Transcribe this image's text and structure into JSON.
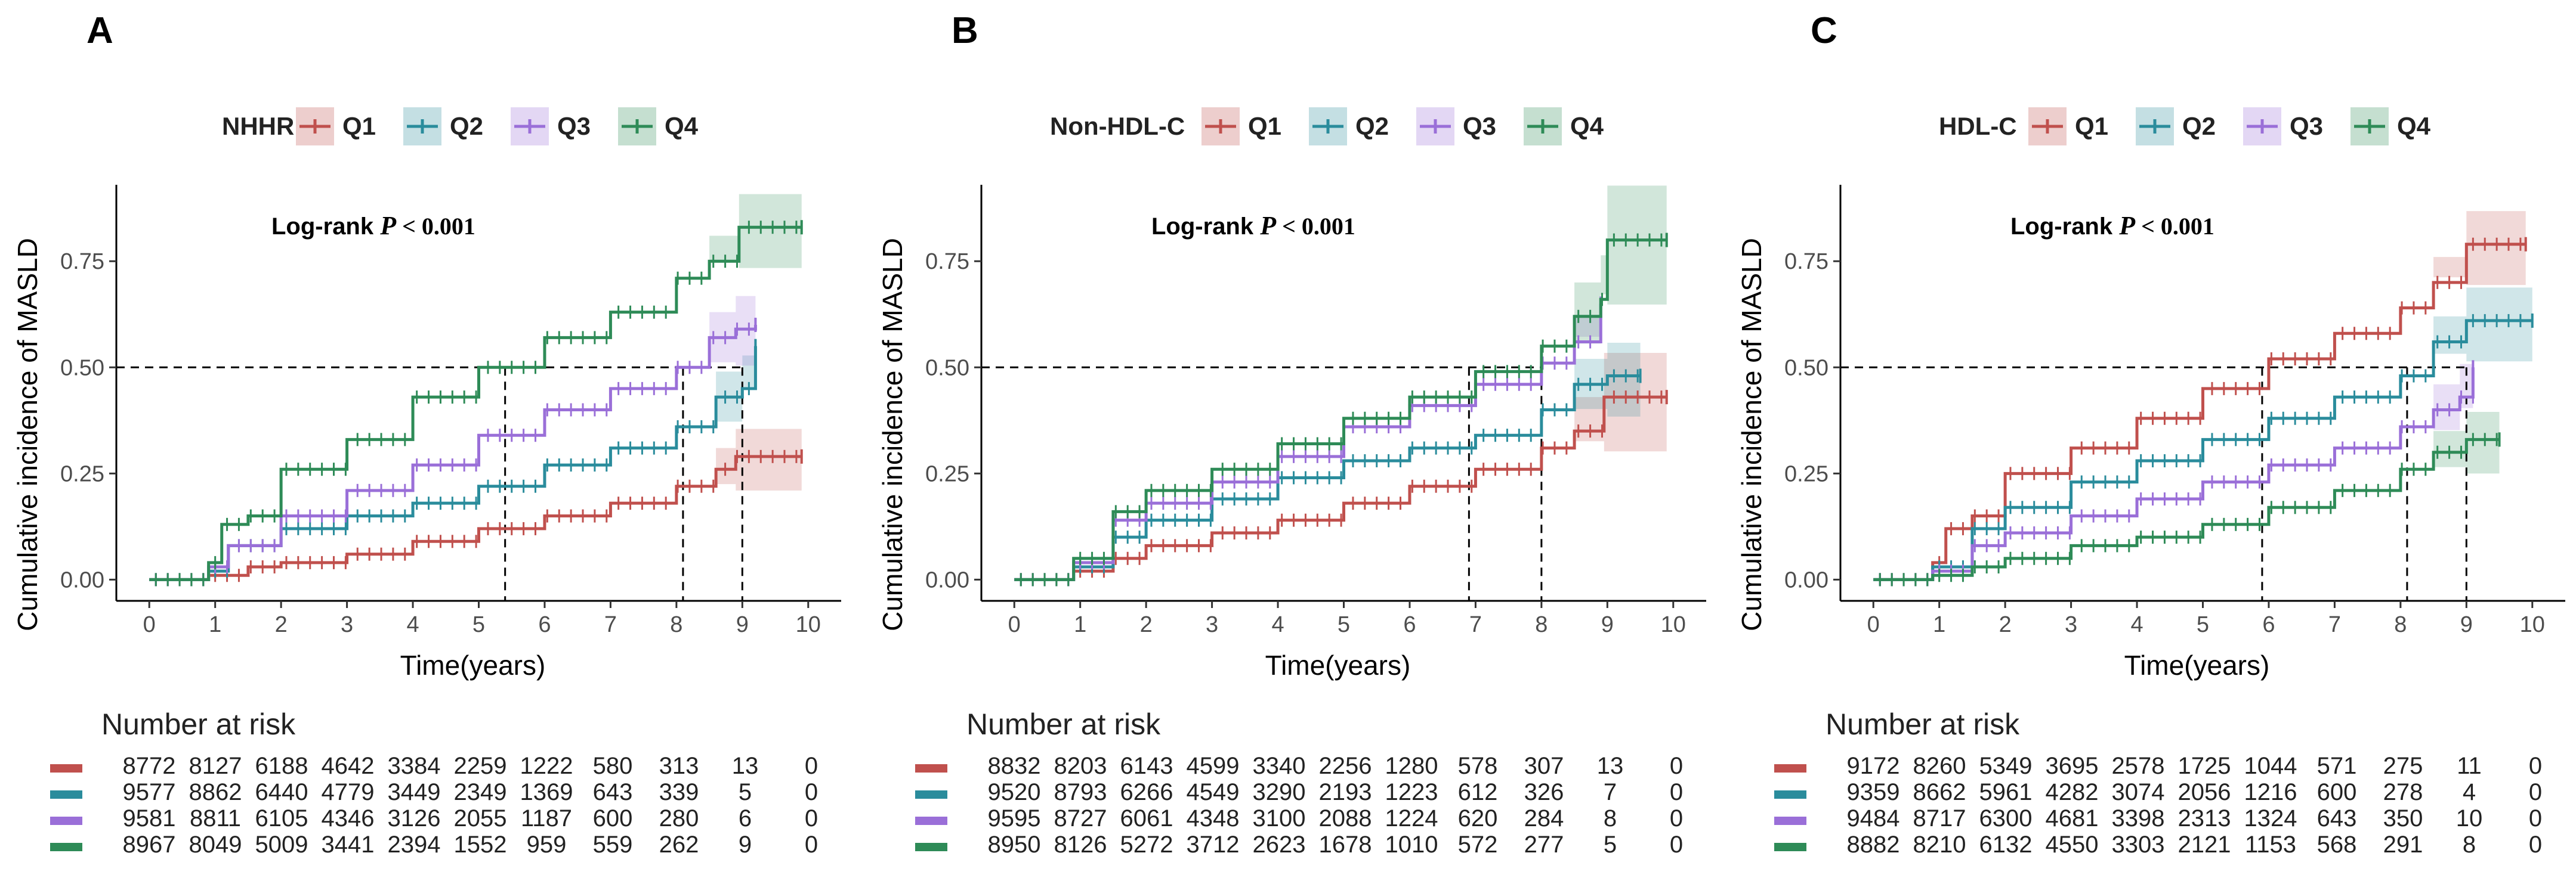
{
  "colors": {
    "Q1": "#C0504D",
    "Q2": "#2A8C9C",
    "Q3": "#9A6FD8",
    "Q4": "#2E8B57"
  },
  "chart_data": [
    {
      "type": "line",
      "panel": "A",
      "legend_title": "NHHR",
      "legend_placement": "top",
      "annotation_prefix": "Log-rank",
      "annotation_p": "P",
      "annotation_value": "< 0.001",
      "xlabel": "Time(years)",
      "ylabel": "Cumulative incidence of MASLD",
      "xlim": [
        -0.5,
        10.5
      ],
      "ylim": [
        -0.05,
        0.93
      ],
      "xticks": [
        0,
        1,
        2,
        3,
        4,
        5,
        6,
        7,
        8,
        9,
        10
      ],
      "yticks": [
        0.0,
        0.25,
        0.5,
        0.75
      ],
      "ytick_labels": [
        "0.00",
        "0.25",
        "0.50",
        "0.75"
      ],
      "median_line_y": 0.5,
      "median_times": [
        5.4,
        8.1,
        9.0
      ],
      "series": [
        {
          "name": "Q1",
          "x": [
            0,
            0.9,
            1.5,
            2,
            3,
            4,
            5,
            6,
            7,
            8,
            8.6,
            8.9,
            9.9
          ],
          "y": [
            0,
            0.01,
            0.03,
            0.04,
            0.06,
            0.09,
            0.12,
            0.15,
            0.18,
            0.22,
            0.26,
            0.29,
            0.29
          ],
          "ci_from": 8.3,
          "ci_width": 0.05
        },
        {
          "name": "Q2",
          "x": [
            0,
            0.9,
            1.2,
            2,
            3,
            4,
            5,
            6,
            7,
            8,
            8.6,
            9,
            9.2
          ],
          "y": [
            0,
            0.02,
            0.08,
            0.12,
            0.15,
            0.18,
            0.22,
            0.27,
            0.31,
            0.36,
            0.43,
            0.45,
            0.55
          ],
          "ci_from": 8.3,
          "ci_width": 0.06
        },
        {
          "name": "Q3",
          "x": [
            0,
            0.9,
            1.2,
            2,
            3,
            4,
            5,
            6,
            7,
            8,
            8.5,
            8.9,
            9.2
          ],
          "y": [
            0,
            0.03,
            0.08,
            0.15,
            0.21,
            0.27,
            0.34,
            0.4,
            0.45,
            0.5,
            0.57,
            0.59,
            0.6
          ],
          "ci_from": 8.3,
          "ci_width": 0.06
        },
        {
          "name": "Q4",
          "x": [
            0,
            0.9,
            1.1,
            1.5,
            2,
            3,
            4,
            5,
            6,
            7,
            8,
            8.5,
            8.95,
            9.9
          ],
          "y": [
            0,
            0.04,
            0.13,
            0.15,
            0.26,
            0.33,
            0.43,
            0.5,
            0.57,
            0.63,
            0.71,
            0.75,
            0.83,
            0.83
          ],
          "ci_from": 8.3,
          "ci_width": 0.06
        }
      ],
      "risk_table": {
        "title": "Number at risk",
        "rows": [
          {
            "name": "Q1",
            "values": [
              "8772",
              "8127",
              "6188",
              "4642",
              "3384",
              "2259",
              "1222",
              "580",
              "313",
              "13",
              "0"
            ]
          },
          {
            "name": "Q2",
            "values": [
              "9577",
              "8862",
              "6440",
              "4779",
              "3449",
              "2349",
              "1369",
              "643",
              "339",
              "5",
              "0"
            ]
          },
          {
            "name": "Q3",
            "values": [
              "9581",
              "8811",
              "6105",
              "4346",
              "3126",
              "2055",
              "1187",
              "600",
              "280",
              "6",
              "0"
            ]
          },
          {
            "name": "Q4",
            "values": [
              "8967",
              "8049",
              "5009",
              "3441",
              "2394",
              "1552",
              "959",
              "559",
              "262",
              "9",
              "0"
            ]
          }
        ]
      }
    },
    {
      "type": "line",
      "panel": "B",
      "legend_title": "Non-HDL-C",
      "legend_placement": "top",
      "annotation_prefix": "Log-rank",
      "annotation_p": "P",
      "annotation_value": "< 0.001",
      "xlabel": "Time(years)",
      "ylabel": "Cumulative incidence of MASLD",
      "xlim": [
        -0.5,
        10.5
      ],
      "ylim": [
        -0.05,
        0.93
      ],
      "xticks": [
        0,
        1,
        2,
        3,
        4,
        5,
        6,
        7,
        8,
        9,
        10
      ],
      "yticks": [
        0.0,
        0.25,
        0.5,
        0.75
      ],
      "ytick_labels": [
        "0.00",
        "0.25",
        "0.50",
        "0.75"
      ],
      "median_line_y": 0.5,
      "median_times": [
        6.9,
        8.0
      ],
      "series": [
        {
          "name": "Q1",
          "x": [
            0,
            0.9,
            1.5,
            2,
            3,
            4,
            5,
            6,
            7,
            8,
            8.5,
            8.95,
            9.9
          ],
          "y": [
            0,
            0.02,
            0.05,
            0.08,
            0.11,
            0.14,
            0.18,
            0.22,
            0.26,
            0.31,
            0.35,
            0.43,
            0.43
          ],
          "ci_from": 8.3,
          "ci_width": 0.08
        },
        {
          "name": "Q2",
          "x": [
            0,
            0.9,
            1.5,
            2,
            3,
            4,
            5,
            6,
            7,
            8,
            8.5,
            9,
            9.5
          ],
          "y": [
            0,
            0.03,
            0.1,
            0.14,
            0.19,
            0.24,
            0.28,
            0.31,
            0.34,
            0.4,
            0.46,
            0.48,
            0.48
          ],
          "ci_from": 8.3,
          "ci_width": 0.06
        },
        {
          "name": "Q3",
          "x": [
            0,
            0.9,
            1.5,
            2,
            3,
            4,
            5,
            6,
            7,
            8,
            8.5,
            8.9
          ],
          "y": [
            0,
            0.04,
            0.14,
            0.18,
            0.23,
            0.29,
            0.36,
            0.41,
            0.46,
            0.51,
            0.56,
            0.65
          ],
          "ci_from": 8.3,
          "ci_width": 0.06
        },
        {
          "name": "Q4",
          "x": [
            0,
            0.9,
            1.5,
            2,
            3,
            4,
            5,
            6,
            7,
            8,
            8.5,
            8.9,
            9.0,
            9.9
          ],
          "y": [
            0,
            0.05,
            0.16,
            0.21,
            0.26,
            0.32,
            0.38,
            0.43,
            0.49,
            0.55,
            0.62,
            0.66,
            0.8,
            0.8
          ],
          "ci_from": 8.3,
          "ci_width": 0.08
        }
      ],
      "risk_table": {
        "title": "Number at risk",
        "rows": [
          {
            "name": "Q1",
            "values": [
              "8832",
              "8203",
              "6143",
              "4599",
              "3340",
              "2256",
              "1280",
              "578",
              "307",
              "13",
              "0"
            ]
          },
          {
            "name": "Q2",
            "values": [
              "9520",
              "8793",
              "6266",
              "4549",
              "3290",
              "2193",
              "1223",
              "612",
              "326",
              "7",
              "0"
            ]
          },
          {
            "name": "Q3",
            "values": [
              "9595",
              "8727",
              "6061",
              "4348",
              "3100",
              "2088",
              "1224",
              "620",
              "284",
              "8",
              "0"
            ]
          },
          {
            "name": "Q4",
            "values": [
              "8950",
              "8126",
              "5272",
              "3712",
              "2623",
              "1678",
              "1010",
              "572",
              "277",
              "5",
              "0"
            ]
          }
        ]
      }
    },
    {
      "type": "line",
      "panel": "C",
      "legend_title": "HDL-C",
      "legend_placement": "top",
      "annotation_prefix": "Log-rank",
      "annotation_p": "P",
      "annotation_value": "< 0.001",
      "xlabel": "Time(years)",
      "ylabel": "Cumulative incidence of MASLD",
      "xlim": [
        -0.5,
        10.5
      ],
      "ylim": [
        -0.05,
        0.93
      ],
      "xticks": [
        0,
        1,
        2,
        3,
        4,
        5,
        6,
        7,
        8,
        9,
        10
      ],
      "yticks": [
        0.0,
        0.25,
        0.5,
        0.75
      ],
      "ytick_labels": [
        "0.00",
        "0.25",
        "0.50",
        "0.75"
      ],
      "median_line_y": 0.5,
      "median_times": [
        5.9,
        8.1,
        9.0
      ],
      "series": [
        {
          "name": "Q1",
          "x": [
            0,
            0.9,
            1.1,
            1.5,
            2,
            3,
            4,
            5,
            6,
            7,
            8,
            8.5,
            9,
            9.9
          ],
          "y": [
            0,
            0.04,
            0.12,
            0.15,
            0.25,
            0.31,
            0.38,
            0.45,
            0.52,
            0.58,
            0.64,
            0.7,
            0.79,
            0.79
          ],
          "ci_from": 8.3,
          "ci_width": 0.06
        },
        {
          "name": "Q2",
          "x": [
            0,
            0.9,
            1.5,
            2,
            3,
            4,
            5,
            6,
            7,
            8,
            8.5,
            9,
            10
          ],
          "y": [
            0,
            0.03,
            0.12,
            0.17,
            0.23,
            0.28,
            0.33,
            0.38,
            0.43,
            0.48,
            0.56,
            0.61,
            0.61
          ],
          "ci_from": 8.3,
          "ci_width": 0.06
        },
        {
          "name": "Q3",
          "x": [
            0,
            0.9,
            1.5,
            2,
            3,
            4,
            5,
            6,
            7,
            8,
            8.5,
            8.9,
            9.1
          ],
          "y": [
            0,
            0.02,
            0.08,
            0.11,
            0.15,
            0.19,
            0.23,
            0.27,
            0.31,
            0.36,
            0.4,
            0.43,
            0.5
          ],
          "ci_from": 8.3,
          "ci_width": 0.06
        },
        {
          "name": "Q4",
          "x": [
            0,
            0.9,
            1.5,
            2,
            3,
            4,
            5,
            6,
            7,
            8,
            8.5,
            9,
            9.5
          ],
          "y": [
            0,
            0.01,
            0.03,
            0.05,
            0.08,
            0.1,
            0.13,
            0.17,
            0.21,
            0.26,
            0.3,
            0.33,
            0.33
          ],
          "ci_from": 8.3,
          "ci_width": 0.05
        }
      ],
      "risk_table": {
        "title": "Number at risk",
        "rows": [
          {
            "name": "Q1",
            "values": [
              "9172",
              "8260",
              "5349",
              "3695",
              "2578",
              "1725",
              "1044",
              "571",
              "275",
              "11",
              "0"
            ]
          },
          {
            "name": "Q2",
            "values": [
              "9359",
              "8662",
              "5961",
              "4282",
              "3074",
              "2056",
              "1216",
              "600",
              "278",
              "4",
              "0"
            ]
          },
          {
            "name": "Q3",
            "values": [
              "9484",
              "8717",
              "6300",
              "4681",
              "3398",
              "2313",
              "1324",
              "643",
              "350",
              "10",
              "0"
            ]
          },
          {
            "name": "Q4",
            "values": [
              "8882",
              "8210",
              "6132",
              "4550",
              "3303",
              "2121",
              "1153",
              "568",
              "291",
              "8",
              "0"
            ]
          }
        ]
      }
    }
  ]
}
